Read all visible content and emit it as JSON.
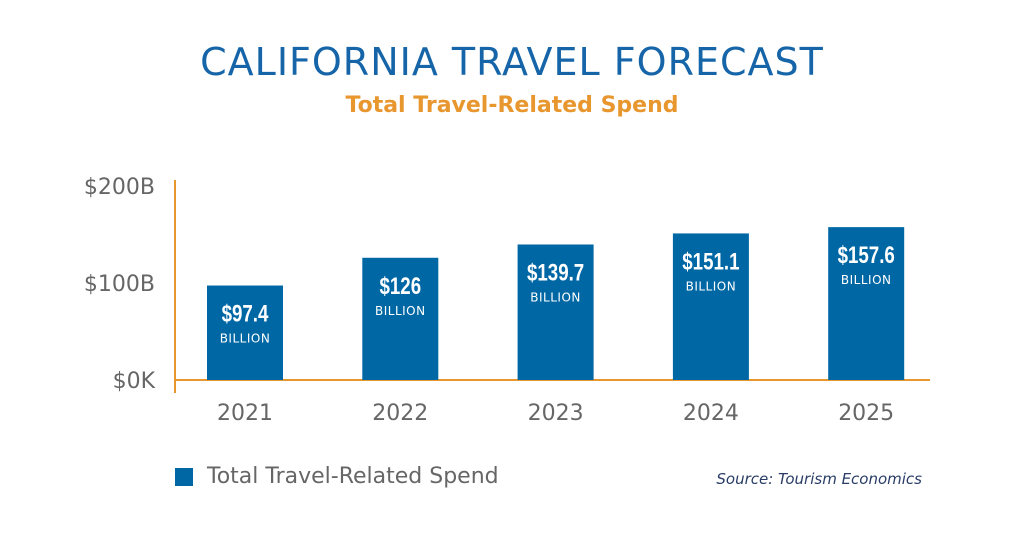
{
  "chart_data": {
    "type": "bar",
    "title": "CALIFORNIA TRAVEL FORECAST",
    "subtitle": "Total Travel-Related Spend",
    "categories": [
      "2021",
      "2022",
      "2023",
      "2024",
      "2025"
    ],
    "values": [
      97.4,
      126,
      139.7,
      151.1,
      157.6
    ],
    "data_labels": [
      "$97.4",
      "$126",
      "$139.7",
      "$151.1",
      "$157.6"
    ],
    "data_label_unit": "BILLION",
    "unit": "billion USD",
    "ylim": [
      0,
      200
    ],
    "yticks": [
      0,
      100,
      200
    ],
    "ytick_labels": [
      "$0K",
      "$100B",
      "$200B"
    ],
    "xlabel": "",
    "ylabel": "",
    "grid": false,
    "legend": {
      "placement": "bottom-left",
      "entries": [
        "Total Travel-Related Spend"
      ]
    },
    "source": "Source: Tourism Economics",
    "colors": {
      "bar": "#0067a5",
      "axis": "#e8962e",
      "title": "#1565a8",
      "subtitle": "#e8962e",
      "tick_text": "#666666"
    }
  }
}
